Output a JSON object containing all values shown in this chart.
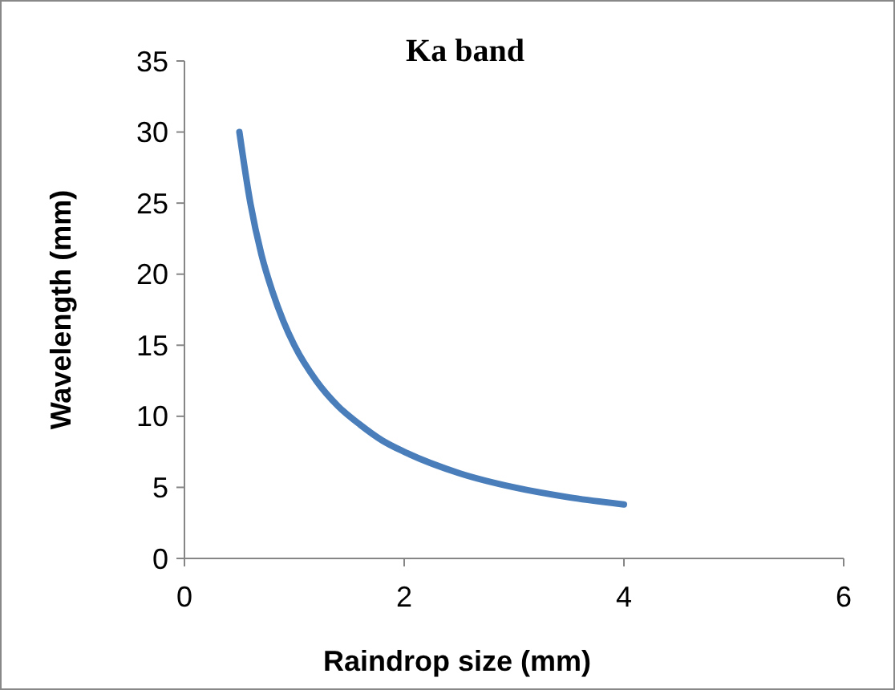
{
  "chart_data": {
    "type": "line",
    "title": "Ka band",
    "xlabel": "Raindrop size (mm)",
    "ylabel": "Wavelength (mm)",
    "x": [
      0.5,
      0.6,
      0.7,
      0.8,
      0.9,
      1,
      1.2,
      1.4,
      1.6,
      1.8,
      2,
      2.5,
      3,
      3.5,
      4
    ],
    "series": [
      {
        "color": "#4a7ebb",
        "values": [
          30,
          25,
          21.4,
          18.8,
          16.7,
          15,
          12.5,
          10.7,
          9.4,
          8.3,
          7.5,
          6,
          5,
          4.3,
          3.8
        ]
      }
    ],
    "xlim": [
      0,
      6
    ],
    "xticks": [
      0,
      2,
      4,
      6
    ],
    "ylim": [
      0,
      35
    ],
    "yticks": [
      0,
      5,
      10,
      15,
      20,
      25,
      30,
      35
    ],
    "grid": false,
    "marker": "none",
    "line_style": "solid"
  }
}
